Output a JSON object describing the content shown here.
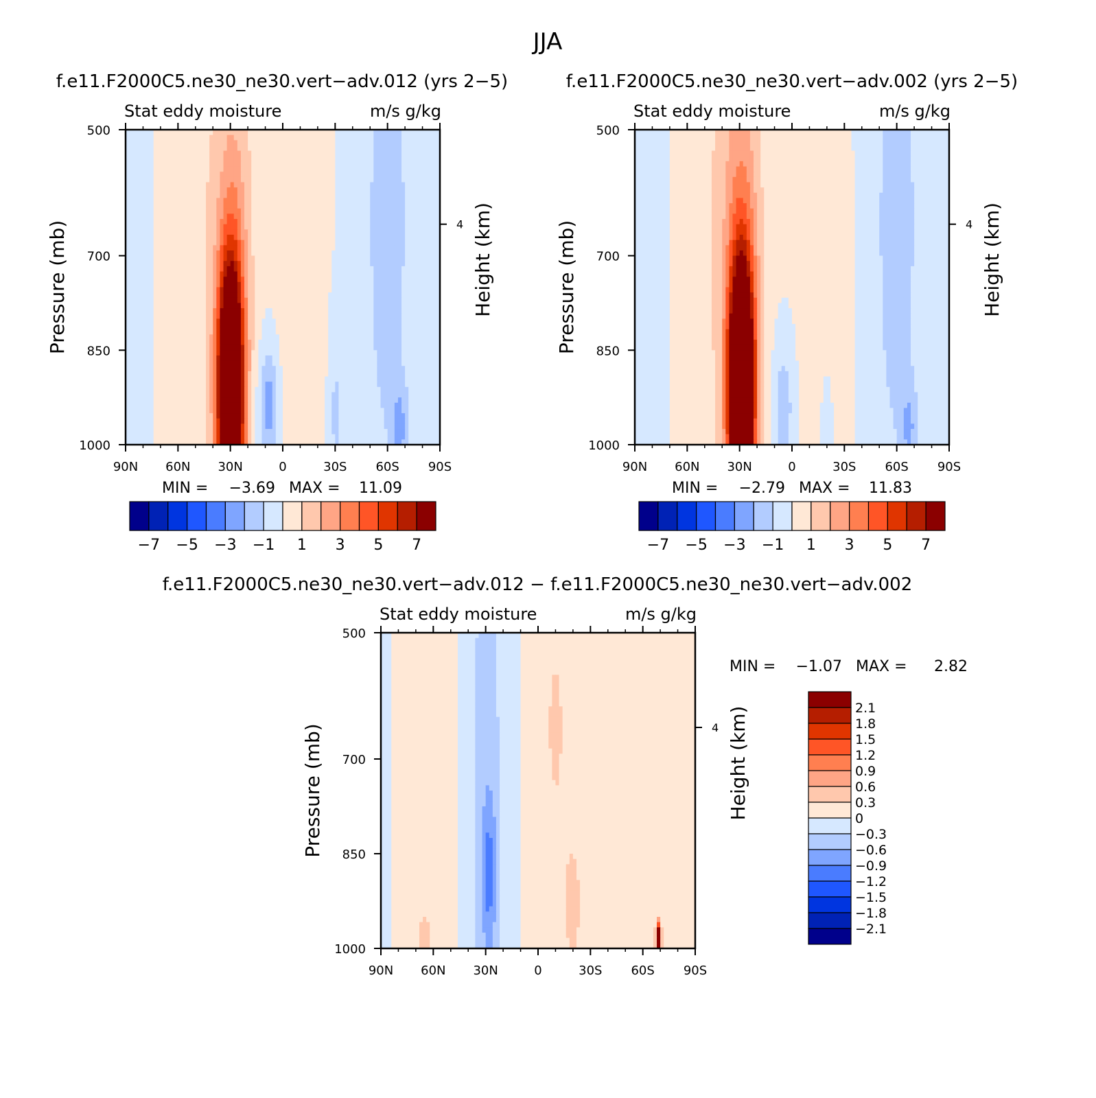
{
  "page_title": "JJA",
  "colors": {
    "full_palette": [
      "#00008b",
      "#0022b5",
      "#0035e0",
      "#1f57ff",
      "#4a7cff",
      "#7fa5ff",
      "#b2ccff",
      "#d6e8ff",
      "#ffe8d6",
      "#ffc8ad",
      "#ffa585",
      "#ff7f50",
      "#ff5526",
      "#e03500",
      "#b51e00",
      "#8b0000"
    ],
    "diff_palette": [
      "#00008b",
      "#0022b5",
      "#0035e0",
      "#1f57ff",
      "#4a7cff",
      "#7fa5ff",
      "#b2ccff",
      "#d6e8ff",
      "#ffe8d6",
      "#ffc8ad",
      "#ffa585",
      "#ff7f50",
      "#ff5526",
      "#e03500",
      "#b51e00",
      "#8b0000"
    ]
  },
  "chart_data": [
    {
      "id": "p1",
      "type": "heatmap",
      "title": "f.e11.F2000C5.ne30_ne30.vert−adv.012 (yrs 2−5)",
      "left_label": "Stat eddy moisture",
      "right_label": "m/s g/kg",
      "ylabel": "Pressure (mb)",
      "y2label": "Height (km)",
      "x_ticks": [
        "90N",
        "60N",
        "30N",
        "0",
        "30S",
        "60S",
        "90S"
      ],
      "x_range": [
        90,
        -90
      ],
      "y_ticks": [
        "500",
        "700",
        "850",
        "1000"
      ],
      "y_values": [
        500,
        700,
        850,
        1000
      ],
      "y_range": [
        500,
        1000
      ],
      "y2_ticks": [
        "4"
      ],
      "min_label": "MIN =",
      "min_value": "−3.69",
      "max_label": "MAX =",
      "max_value": "11.09",
      "colorbar_ticks": [
        "−7",
        "−5",
        "−3",
        "−1",
        "1",
        "3",
        "5",
        "7"
      ],
      "levels": [
        -7,
        -6,
        -5,
        -4,
        -3,
        -2,
        -1,
        0,
        1,
        2,
        3,
        4,
        5,
        6,
        7
      ],
      "features": [
        {
          "lat": 30,
          "p": 920,
          "amp": 14,
          "slat": 7,
          "sp": 200
        },
        {
          "lat": 28,
          "p": 700,
          "amp": 2.2,
          "slat": 11,
          "sp": 350
        },
        {
          "lat": 55,
          "p": 650,
          "amp": 0.9,
          "slat": 22,
          "sp": 800
        },
        {
          "lat": -10,
          "p": 780,
          "amp": 0.8,
          "slat": 14,
          "sp": 600
        },
        {
          "lat": 80,
          "p": 700,
          "amp": -0.9,
          "slat": 6,
          "sp": 900
        },
        {
          "lat": 8,
          "p": 940,
          "amp": -2.6,
          "slat": 6,
          "sp": 100
        },
        {
          "lat": -60,
          "p": 650,
          "amp": -1.3,
          "slat": 18,
          "sp": 600
        },
        {
          "lat": -30,
          "p": 950,
          "amp": -1.2,
          "slat": 4,
          "sp": 150
        },
        {
          "lat": -67,
          "p": 970,
          "amp": -1.8,
          "slat": 4,
          "sp": 60
        }
      ]
    },
    {
      "id": "p2",
      "type": "heatmap",
      "title": "f.e11.F2000C5.ne30_ne30.vert−adv.002 (yrs 2−5)",
      "left_label": "Stat eddy moisture",
      "right_label": "m/s g/kg",
      "ylabel": "Pressure (mb)",
      "y2label": "Height (km)",
      "x_ticks": [
        "90N",
        "60N",
        "30N",
        "0",
        "30S",
        "60S",
        "90S"
      ],
      "x_range": [
        90,
        -90
      ],
      "y_ticks": [
        "500",
        "700",
        "850",
        "1000"
      ],
      "y_values": [
        500,
        700,
        850,
        1000
      ],
      "y_range": [
        500,
        1000
      ],
      "y2_ticks": [
        "4"
      ],
      "min_label": "MIN =",
      "min_value": "−2.79",
      "max_label": "MAX =",
      "max_value": "11.83",
      "colorbar_ticks": [
        "−7",
        "−5",
        "−3",
        "−1",
        "1",
        "3",
        "5",
        "7"
      ],
      "levels": [
        -7,
        -6,
        -5,
        -4,
        -3,
        -2,
        -1,
        0,
        1,
        2,
        3,
        4,
        5,
        6,
        7
      ],
      "features": [
        {
          "lat": 29,
          "p": 920,
          "amp": 15,
          "slat": 7,
          "sp": 200
        },
        {
          "lat": 28,
          "p": 700,
          "amp": 2.3,
          "slat": 11,
          "sp": 350
        },
        {
          "lat": 40,
          "p": 600,
          "amp": 0.9,
          "slat": 18,
          "sp": 800
        },
        {
          "lat": -20,
          "p": 800,
          "amp": 0.7,
          "slat": 14,
          "sp": 600
        },
        {
          "lat": 80,
          "p": 700,
          "amp": -0.8,
          "slat": 6,
          "sp": 900
        },
        {
          "lat": 5,
          "p": 940,
          "amp": -1.7,
          "slat": 6,
          "sp": 100
        },
        {
          "lat": -60,
          "p": 650,
          "amp": -1.3,
          "slat": 18,
          "sp": 600
        },
        {
          "lat": -20,
          "p": 960,
          "amp": -1.2,
          "slat": 4,
          "sp": 100
        },
        {
          "lat": -67,
          "p": 970,
          "amp": -1.6,
          "slat": 4,
          "sp": 60
        }
      ]
    },
    {
      "id": "p3",
      "type": "heatmap",
      "title": "f.e11.F2000C5.ne30_ne30.vert−adv.012 − f.e11.F2000C5.ne30_ne30.vert−adv.002",
      "left_label": "Stat eddy moisture",
      "right_label": "m/s g/kg",
      "ylabel": "Pressure (mb)",
      "y2label": "Height (km)",
      "x_ticks": [
        "90N",
        "60N",
        "30N",
        "0",
        "30S",
        "60S",
        "90S"
      ],
      "x_range": [
        90,
        -90
      ],
      "y_ticks": [
        "500",
        "700",
        "850",
        "1000"
      ],
      "y_values": [
        500,
        700,
        850,
        1000
      ],
      "y_range": [
        500,
        1000
      ],
      "y2_ticks": [
        "4"
      ],
      "min_label": "MIN =",
      "min_value": "−1.07",
      "max_label": "MAX =",
      "max_value": "2.82",
      "colorbar_ticks": [
        "2.1",
        "1.8",
        "1.5",
        "1.2",
        "0.9",
        "0.6",
        "0.3",
        "0",
        "−0.3",
        "−0.6",
        "−0.9",
        "−1.2",
        "−1.5",
        "−1.8",
        "−2.1"
      ],
      "levels": [
        -2.1,
        -1.8,
        -1.5,
        -1.2,
        -0.9,
        -0.6,
        -0.3,
        0,
        0.3,
        0.6,
        0.9,
        1.2,
        1.5,
        1.8,
        2.1
      ],
      "features": [
        {
          "lat": 67,
          "p": 720,
          "amp": 0.16,
          "slat": 22,
          "sp": 900
        },
        {
          "lat": -10,
          "p": 750,
          "amp": 0.2,
          "slat": 14,
          "sp": 700
        },
        {
          "lat": -45,
          "p": 720,
          "amp": 0.15,
          "slat": 20,
          "sp": 900
        },
        {
          "lat": 30,
          "p": 800,
          "amp": -0.45,
          "slat": 12,
          "sp": 700
        },
        {
          "lat": 28,
          "p": 880,
          "amp": -0.65,
          "slat": 4,
          "sp": 120
        },
        {
          "lat": 86,
          "p": 750,
          "amp": -0.15,
          "slat": 4,
          "sp": 700
        },
        {
          "lat": -10,
          "p": 650,
          "amp": 0.35,
          "slat": 3,
          "sp": 80
        },
        {
          "lat": -20,
          "p": 930,
          "amp": 0.4,
          "slat": 4,
          "sp": 80
        },
        {
          "lat": 65,
          "p": 990,
          "amp": 0.4,
          "slat": 3,
          "sp": 40
        },
        {
          "lat": -69,
          "p": 985,
          "amp": 3.0,
          "slat": 1.5,
          "sp": 25
        }
      ]
    }
  ]
}
